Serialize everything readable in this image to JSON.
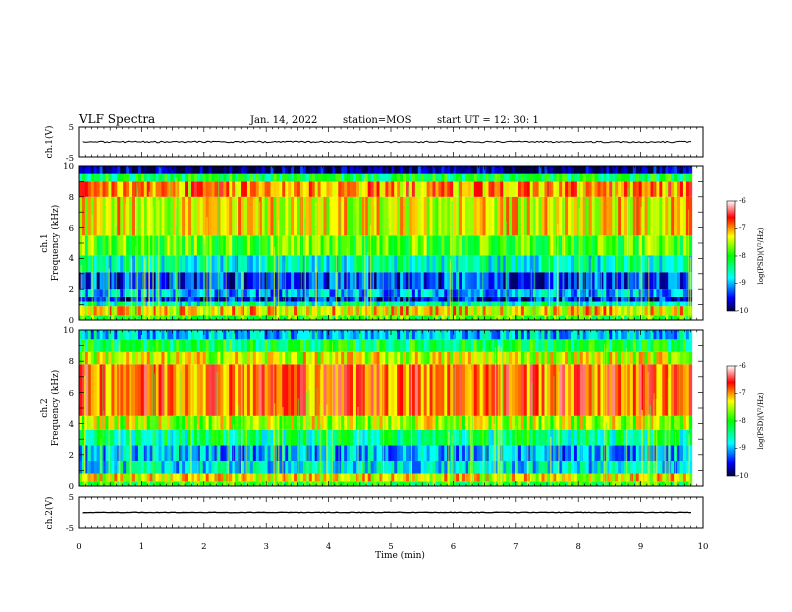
{
  "header": {
    "title": "VLF Spectra",
    "date": "Jan. 14, 2022",
    "station": "station=MOS",
    "start": "start  UT =   12: 30: 1"
  },
  "chart_data": [
    {
      "type": "line",
      "name": "ch1-waveform",
      "ylabel": "ch.1(V)",
      "ylim": [
        -5,
        5
      ],
      "yticks": [
        "5",
        "-5"
      ],
      "xlim": [
        0,
        10
      ],
      "baseline_value": 0
    },
    {
      "type": "heatmap",
      "name": "ch1-spectrogram",
      "ylabel": "ch.1\nFrequency (kHz)",
      "ylabel_line1": "ch.1",
      "ylabel_line2": "Frequency (kHz)",
      "ylim": [
        0,
        10
      ],
      "yticks": [
        "0",
        "2",
        "4",
        "6",
        "8",
        "10"
      ],
      "xlim": [
        0,
        10
      ],
      "x_data_end_min": 9.82,
      "bands_khz": [
        {
          "from": 0.0,
          "to": 0.3,
          "level": -7.9
        },
        {
          "from": 0.3,
          "to": 0.9,
          "level": -7.2
        },
        {
          "from": 0.9,
          "to": 1.2,
          "level": -8.6
        },
        {
          "from": 1.2,
          "to": 1.5,
          "level": -9.5
        },
        {
          "from": 1.5,
          "to": 2.0,
          "level": -9.0
        },
        {
          "from": 2.0,
          "to": 3.1,
          "level": -9.4
        },
        {
          "from": 3.1,
          "to": 4.2,
          "level": -8.6
        },
        {
          "from": 4.2,
          "to": 5.5,
          "level": -7.8
        },
        {
          "from": 5.5,
          "to": 8.0,
          "level": -7.3
        },
        {
          "from": 8.0,
          "to": 9.0,
          "level": -7.0
        },
        {
          "from": 9.0,
          "to": 9.5,
          "level": -8.2
        },
        {
          "from": 9.5,
          "to": 10.0,
          "level": -9.8
        }
      ],
      "colorbar": {
        "label": "log(PSD)(V²/Hz)",
        "ticks": [
          "-6",
          "-7",
          "-8",
          "-9",
          "-10"
        ],
        "range": [
          -10,
          -6
        ]
      }
    },
    {
      "type": "heatmap",
      "name": "ch2-spectrogram",
      "ylabel": "ch.2\nFrequency (kHz)",
      "ylabel_line1": "ch.2",
      "ylabel_line2": "Frequency (kHz)",
      "ylim": [
        0,
        10
      ],
      "yticks": [
        "0",
        "2",
        "4",
        "6",
        "8",
        "10"
      ],
      "xlim": [
        0,
        10
      ],
      "x_data_end_min": 9.82,
      "bands_khz": [
        {
          "from": 0.0,
          "to": 0.3,
          "level": -8.0
        },
        {
          "from": 0.3,
          "to": 0.8,
          "level": -7.3
        },
        {
          "from": 0.8,
          "to": 1.6,
          "level": -8.8
        },
        {
          "from": 1.6,
          "to": 2.6,
          "level": -9.0
        },
        {
          "from": 2.6,
          "to": 3.6,
          "level": -8.4
        },
        {
          "from": 3.6,
          "to": 4.5,
          "level": -7.5
        },
        {
          "from": 4.5,
          "to": 7.8,
          "level": -6.8
        },
        {
          "from": 7.8,
          "to": 8.6,
          "level": -7.4
        },
        {
          "from": 8.6,
          "to": 9.4,
          "level": -8.2
        },
        {
          "from": 9.4,
          "to": 10.0,
          "level": -8.9
        }
      ],
      "colorbar": {
        "label": "log(PSD)(V²/Hz)",
        "ticks": [
          "-6",
          "-7",
          "-8",
          "-9",
          "-10"
        ],
        "range": [
          -10,
          -6
        ]
      }
    },
    {
      "type": "line",
      "name": "ch2-waveform",
      "ylabel": "ch.2(V)",
      "ylim": [
        -5,
        5
      ],
      "yticks": [
        "5",
        "-5"
      ],
      "xlim": [
        0,
        10
      ],
      "baseline_value": 0,
      "xlabel": "Time (min)",
      "xticks": [
        "0",
        "1",
        "2",
        "3",
        "4",
        "5",
        "6",
        "7",
        "8",
        "9",
        "10"
      ]
    }
  ],
  "colors": {
    "scale": [
      "#00003a",
      "#0000ff",
      "#00ffff",
      "#00ff00",
      "#ffff00",
      "#ff0000",
      "#ffffff"
    ]
  }
}
